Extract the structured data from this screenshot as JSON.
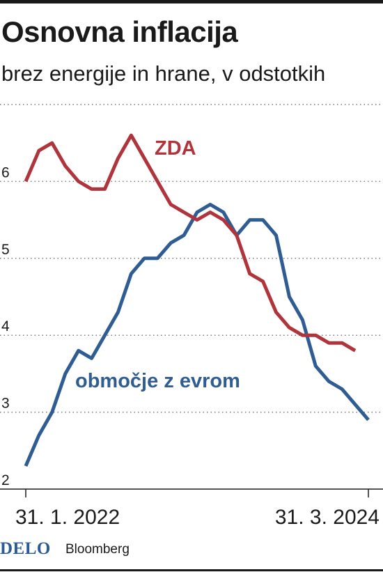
{
  "title": "Osnovna inflacija",
  "subtitle": "brez energije in hrane, v odstotkih",
  "footer": {
    "brand": "DELO",
    "source": "Bloomberg"
  },
  "colors": {
    "usa": "#b0343c",
    "euro": "#2f5d93",
    "text": "#1a1a1a",
    "grid": "#7a7a7a"
  },
  "chart_data": {
    "type": "line",
    "x": [
      "2022-01-31",
      "2022-02-28",
      "2022-03-31",
      "2022-04-30",
      "2022-05-31",
      "2022-06-30",
      "2022-07-31",
      "2022-08-31",
      "2022-09-30",
      "2022-10-31",
      "2022-11-30",
      "2022-12-31",
      "2023-01-31",
      "2023-02-28",
      "2023-03-31",
      "2023-04-30",
      "2023-05-31",
      "2023-06-30",
      "2023-07-31",
      "2023-08-31",
      "2023-09-30",
      "2023-10-31",
      "2023-11-30",
      "2023-12-31",
      "2024-01-31",
      "2024-02-29",
      "2024-03-31"
    ],
    "x_tick_labels": [
      "31. 1. 2022",
      "31. 3. 2024"
    ],
    "ylim": [
      2,
      7
    ],
    "y_ticks": [
      2,
      3,
      4,
      5,
      6
    ],
    "grid": "horizontal dotted",
    "series": [
      {
        "name": "ZDA",
        "color": "#b0343c",
        "values": [
          6.0,
          6.4,
          6.5,
          6.2,
          6.0,
          5.9,
          5.9,
          6.3,
          6.6,
          6.3,
          6.0,
          5.7,
          5.6,
          5.5,
          5.6,
          5.5,
          5.3,
          4.8,
          4.7,
          4.3,
          4.1,
          4.0,
          4.0,
          3.9,
          3.9,
          3.8,
          null
        ]
      },
      {
        "name": "območje z evrom",
        "color": "#2f5d93",
        "values": [
          2.3,
          2.7,
          3.0,
          3.5,
          3.8,
          3.7,
          4.0,
          4.3,
          4.8,
          5.0,
          5.0,
          5.2,
          5.3,
          5.6,
          5.7,
          5.6,
          5.3,
          5.5,
          5.5,
          5.3,
          4.5,
          4.2,
          3.6,
          3.4,
          3.3,
          3.1,
          2.9
        ]
      }
    ]
  }
}
